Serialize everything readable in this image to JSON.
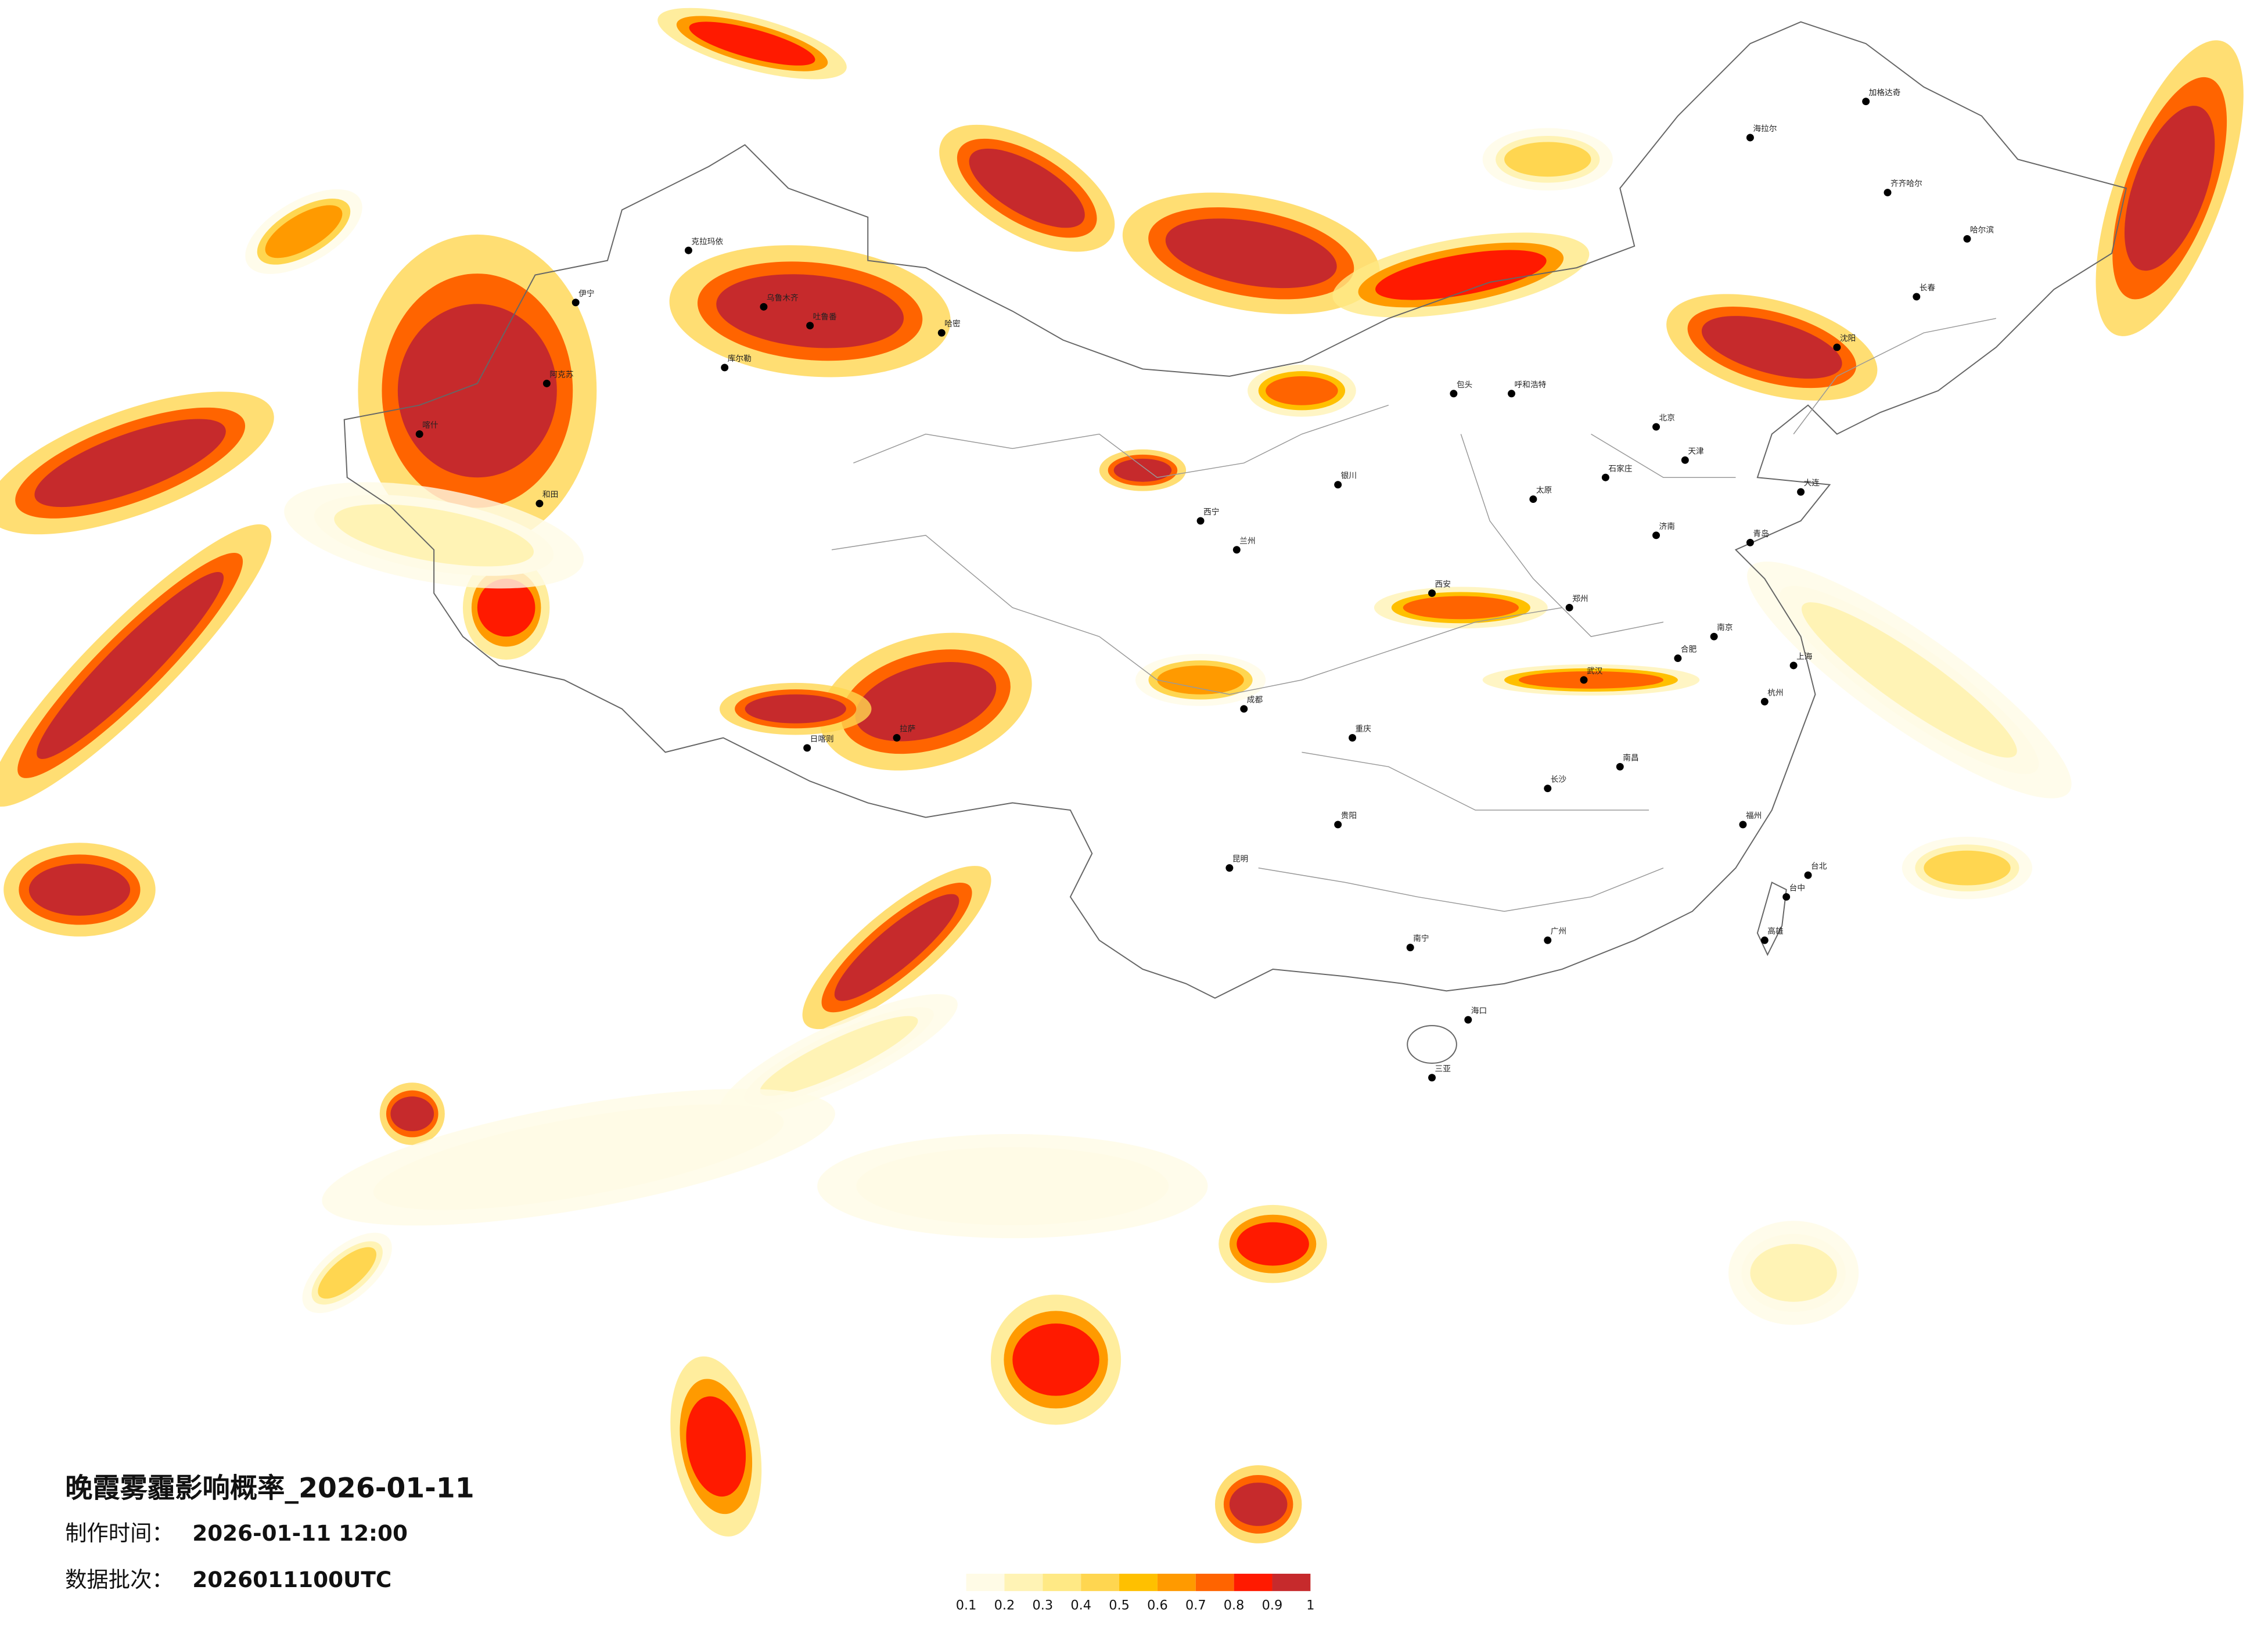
{
  "title": "晚霞雾霾影响概率_2026-01-11",
  "made_time_label": "制作时间：",
  "made_time": "2026-01-11 12:00",
  "batch_label": "数据批次：",
  "batch": "2026011100UTC",
  "legend": {
    "ticks": [
      0.1,
      0.2,
      0.3,
      0.4,
      0.5,
      0.6,
      0.7,
      0.8,
      0.9,
      1
    ],
    "colors": [
      "#fffbe6",
      "#fff3b5",
      "#ffe985",
      "#ffd650",
      "#ffc000",
      "#ff9a00",
      "#ff6400",
      "#ff1a00",
      "#c62a2c"
    ]
  },
  "cities": [
    "克拉玛依",
    "伊宁",
    "乌鲁木齐",
    "吐鲁番",
    "哈密",
    "库尔勒",
    "阿克苏",
    "喀什",
    "和田",
    "日喀则",
    "拉萨",
    "西宁",
    "兰州",
    "银川",
    "呼和浩特",
    "包头",
    "北京",
    "天津",
    "石家庄",
    "太原",
    "济南",
    "青岛",
    "郑州",
    "西安",
    "成都",
    "重庆",
    "贵阳",
    "昆明",
    "南宁",
    "海口",
    "三亚",
    "广州",
    "长沙",
    "武汉",
    "南昌",
    "合肥",
    "南京",
    "上海",
    "杭州",
    "福州",
    "台北",
    "台中",
    "高雄",
    "沈阳",
    "大连",
    "长春",
    "哈尔滨",
    "齐齐哈尔",
    "海拉尔",
    "加格达奇"
  ]
}
